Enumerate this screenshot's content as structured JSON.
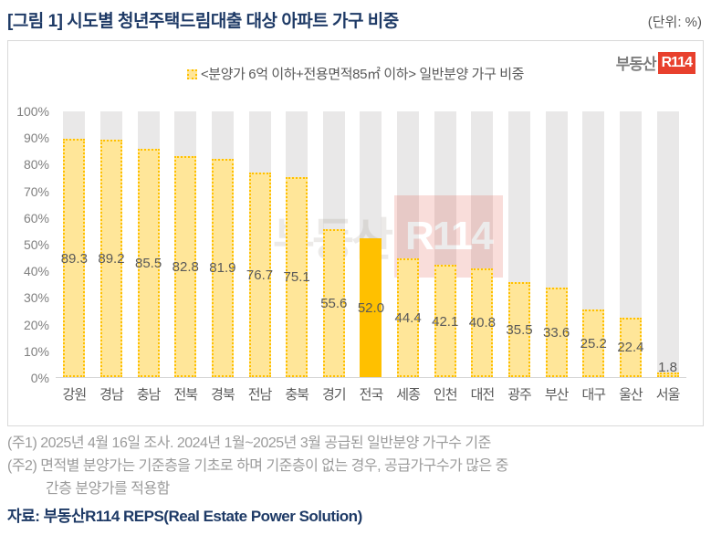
{
  "header": {
    "title": "[그림 1] 시도별 청년주택드림대출 대상 아파트 가구 비중",
    "unit": "(단위: %)"
  },
  "logo": {
    "prefix": "부동산",
    "badge": "R114"
  },
  "legend": {
    "label": "<분양가 6억 이하+전용면적85㎡ 이하> 일반분양 가구 비중"
  },
  "watermark": {
    "prefix": "부동산",
    "badge": "R114"
  },
  "chart_data": {
    "type": "bar",
    "title": "시도별 청년주택드림대출 대상 아파트 가구 비중",
    "categories": [
      "강원",
      "경남",
      "충남",
      "전북",
      "경북",
      "전남",
      "충북",
      "경기",
      "전국",
      "세종",
      "인천",
      "대전",
      "광주",
      "부산",
      "대구",
      "울산",
      "서울"
    ],
    "values": [
      89.3,
      89.2,
      85.5,
      82.8,
      81.9,
      76.7,
      75.1,
      55.6,
      52.0,
      44.4,
      42.1,
      40.8,
      35.5,
      33.6,
      25.2,
      22.4,
      1.8
    ],
    "highlighted_category": "전국",
    "ylabel": "일반분양 가구 비중 (%)",
    "ylim": [
      0,
      100
    ],
    "yticks": [
      "0%",
      "10%",
      "20%",
      "30%",
      "40%",
      "50%",
      "60%",
      "70%",
      "80%",
      "90%",
      "100%"
    ],
    "grid": false,
    "legend_position": "top-center",
    "colors": {
      "bar_fill": "#FFE699",
      "bar_border": "#FFC000",
      "highlight": "#FFC000",
      "track": "#E9E8E8",
      "value_label": "#595959",
      "title": "#1E3A66",
      "logo_red": "#E8402D"
    }
  },
  "footnotes": {
    "note1": "(주1) 2025년 4월 16일 조사. 2024년 1월~2025년 3월 공급된 일반분양 가구수 기준",
    "note2": "(주2) 면적별 분양가는 기준층을 기초로 하며 기준층이 없는 경우, 공급가구수가 많은 중",
    "note2_cont": "간층 분양가를 적용함",
    "source": "자료: 부동산R114 REPS(Real Estate Power Solution)"
  }
}
